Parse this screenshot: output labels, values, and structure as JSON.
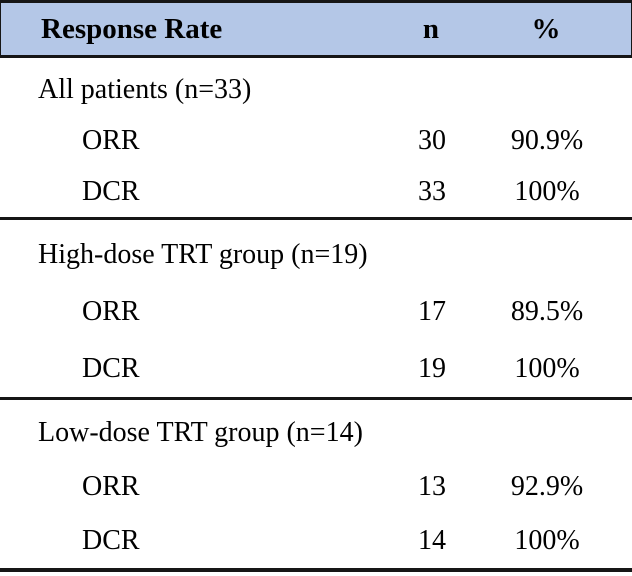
{
  "table": {
    "header": {
      "label": "Response Rate",
      "col_n": "n",
      "col_pct": "%"
    },
    "sections": [
      {
        "title": "All patients (n=33)",
        "rows": [
          {
            "label": "ORR",
            "n": "30",
            "pct": "90.9%"
          },
          {
            "label": "DCR",
            "n": "33",
            "pct": "100%"
          }
        ]
      },
      {
        "title": "High-dose TRT group (n=19)",
        "rows": [
          {
            "label": "ORR",
            "n": "17",
            "pct": "89.5%"
          },
          {
            "label": "DCR",
            "n": "19",
            "pct": "100%"
          }
        ]
      },
      {
        "title": "Low-dose TRT group (n=14)",
        "rows": [
          {
            "label": "ORR",
            "n": "13",
            "pct": "92.9%"
          },
          {
            "label": "DCR",
            "n": "14",
            "pct": "100%"
          }
        ]
      }
    ]
  },
  "chart_data": {
    "type": "table",
    "title": "Response Rate",
    "columns": [
      "Response Rate",
      "n",
      "%"
    ],
    "groups": [
      {
        "group": "All patients (n=33)",
        "rows": [
          [
            "ORR",
            30,
            "90.9%"
          ],
          [
            "DCR",
            33,
            "100%"
          ]
        ]
      },
      {
        "group": "High-dose TRT group (n=19)",
        "rows": [
          [
            "ORR",
            17,
            "89.5%"
          ],
          [
            "DCR",
            19,
            "100%"
          ]
        ]
      },
      {
        "group": "Low-dose TRT group (n=14)",
        "rows": [
          [
            "ORR",
            13,
            "92.9%"
          ],
          [
            "DCR",
            14,
            "100%"
          ]
        ]
      }
    ]
  },
  "colors": {
    "header_bg": "#b4c7e7",
    "border": "#161616",
    "text": "#000000"
  }
}
